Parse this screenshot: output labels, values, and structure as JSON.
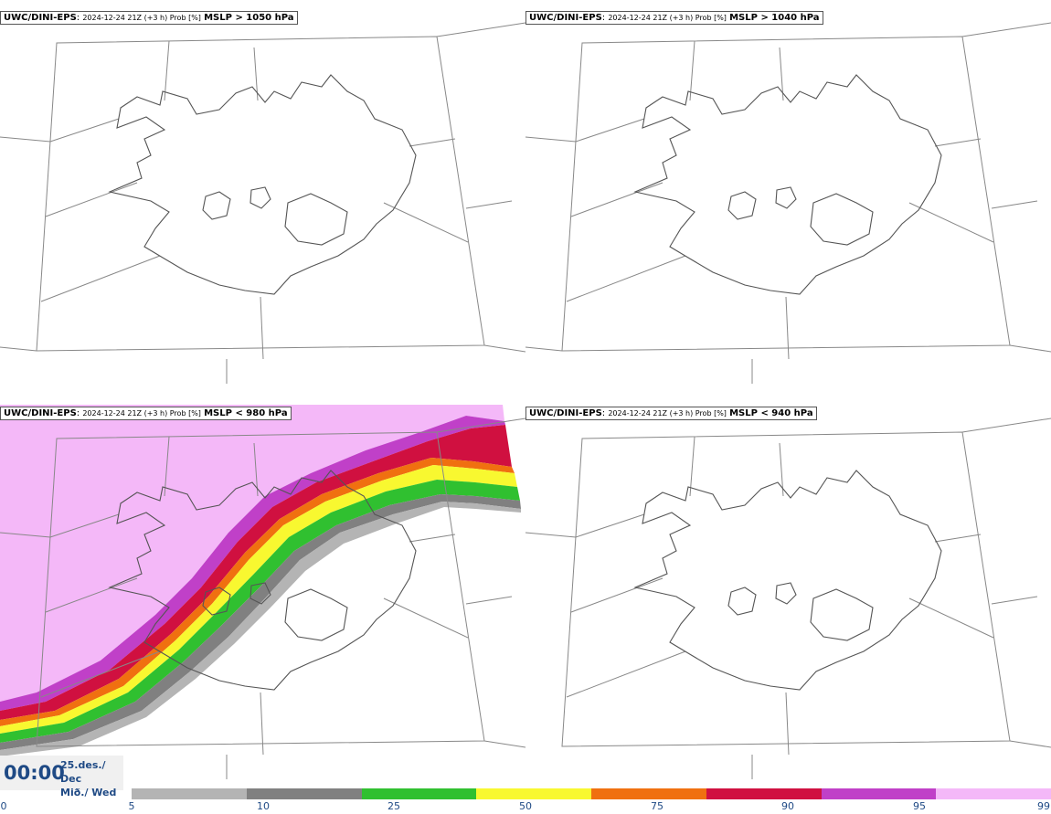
{
  "panels": [
    {
      "model": "UWC/DINI-EPS",
      "meta": "2024-12-24 21Z (+3 h) Prob [%]",
      "criterion": "MSLP > 1050 hPa"
    },
    {
      "model": "UWC/DINI-EPS",
      "meta": "2024-12-24 21Z (+3 h) Prob [%]",
      "criterion": "MSLP > 1040 hPa"
    },
    {
      "model": "UWC/DINI-EPS",
      "meta": "2024-12-24 21Z (+3 h) Prob [%]",
      "criterion": "MSLP < 980 hPa"
    },
    {
      "model": "UWC/DINI-EPS",
      "meta": "2024-12-24 21Z (+3 h) Prob [%]",
      "criterion": "MSLP < 940 hPa"
    }
  ],
  "time": {
    "clock": "00:00",
    "date_line1": "25.des./ Dec",
    "date_line2": "Mið./ Wed"
  },
  "legend": {
    "ticks": [
      "0",
      "5",
      "10",
      "25",
      "50",
      "75",
      "90",
      "95",
      "99"
    ],
    "colors": [
      "#b4b4b4",
      "#808080",
      "#30c030",
      "#f8f830",
      "#f07010",
      "#d01040",
      "#c040c8",
      "#f4b8f8"
    ]
  }
}
